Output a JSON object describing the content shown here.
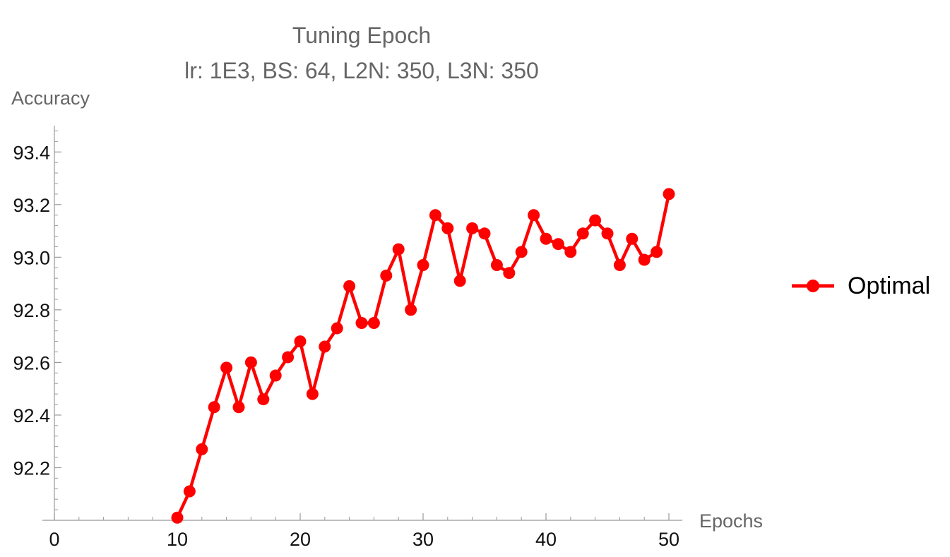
{
  "chart_data": {
    "type": "line",
    "title": "Tuning Epoch",
    "subtitle": "lr: 1E3, BS: 64, L2N: 350, L3N: 350",
    "xlabel": "Epochs",
    "ylabel": "Accuracy",
    "xlim": [
      0,
      50
    ],
    "ylim": [
      92.0,
      93.5
    ],
    "x_ticks": [
      0,
      10,
      20,
      30,
      40,
      50
    ],
    "y_ticks": [
      92.2,
      92.4,
      92.6,
      92.8,
      93.0,
      93.2,
      93.4
    ],
    "x_tick_labels": [
      "0",
      "10",
      "20",
      "30",
      "40",
      "50"
    ],
    "y_tick_labels": [
      "92.2",
      "92.4",
      "92.6",
      "92.8",
      "93.0",
      "93.2",
      "93.4"
    ],
    "grid": false,
    "legend_position": "right",
    "series": [
      {
        "name": "Optimal",
        "color": "#ff0000",
        "marker": "circle",
        "x": [
          10,
          11,
          12,
          13,
          14,
          15,
          16,
          17,
          18,
          19,
          20,
          21,
          22,
          23,
          24,
          25,
          26,
          27,
          28,
          29,
          30,
          31,
          32,
          33,
          34,
          35,
          36,
          37,
          38,
          39,
          40,
          41,
          42,
          43,
          44,
          45,
          46,
          47,
          48,
          49,
          50
        ],
        "y": [
          92.01,
          92.11,
          92.27,
          92.43,
          92.58,
          92.43,
          92.6,
          92.46,
          92.55,
          92.62,
          92.68,
          92.48,
          92.66,
          92.73,
          92.89,
          92.75,
          92.75,
          92.93,
          93.03,
          92.8,
          92.97,
          93.16,
          93.11,
          92.91,
          93.11,
          93.09,
          92.97,
          92.94,
          93.02,
          93.16,
          93.07,
          93.05,
          93.02,
          93.09,
          93.14,
          93.09,
          92.97,
          93.07,
          92.99,
          93.02,
          93.24
        ]
      }
    ]
  }
}
